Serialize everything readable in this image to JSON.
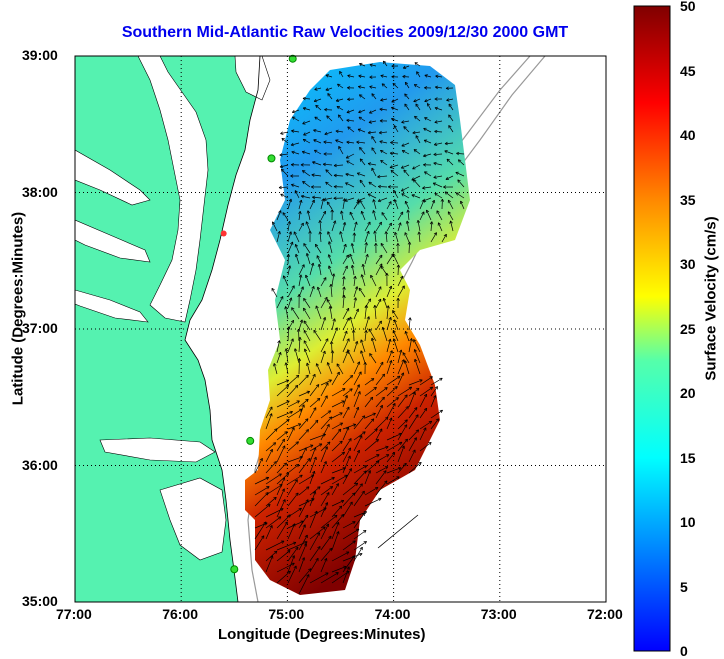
{
  "title": "Southern Mid-Atlantic Raw Velocities 2009/12/30 2000 GMT",
  "xlabel": "Longitude (Degrees:Minutes)",
  "ylabel": "Latitude (Degrees:Minutes)",
  "colorbar_label": "Surface Velocity (cm/s)",
  "x_ticks": [
    "77:00",
    "76:00",
    "75:00",
    "74:00",
    "73:00",
    "72:00"
  ],
  "y_ticks": [
    "39:00",
    "38:00",
    "37:00",
    "36:00",
    "35:00"
  ],
  "colorbar_ticks": [
    "50",
    "45",
    "40",
    "35",
    "30",
    "25",
    "20",
    "15",
    "10",
    "5",
    "0"
  ],
  "colors": {
    "land": "#55f2b0",
    "title": "#0000ee",
    "grid": "#000000"
  },
  "chart_data": {
    "type": "heatmap",
    "title": "Southern Mid-Atlantic Raw Velocities 2009/12/30 2000 GMT",
    "xlabel": "Longitude (Degrees:Minutes)",
    "ylabel": "Latitude (Degrees:Minutes)",
    "xlim": [
      -77.0,
      -72.0
    ],
    "ylim": [
      35.0,
      39.0
    ],
    "colorbar": {
      "label": "Surface Velocity (cm/s)",
      "range": [
        0,
        50
      ],
      "colormap": "jet"
    },
    "grid": true,
    "stations_green": [
      [
        -74.95,
        38.98
      ],
      [
        -75.15,
        38.25
      ],
      [
        -75.35,
        36.18
      ],
      [
        -75.5,
        35.24
      ]
    ],
    "stations_red": [
      [
        -75.6,
        37.7
      ]
    ]
  }
}
